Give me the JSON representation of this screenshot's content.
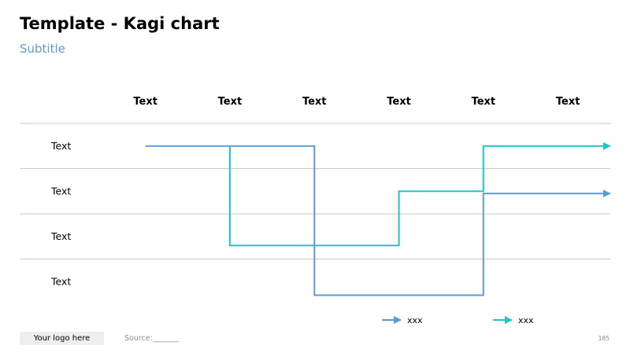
{
  "header": {
    "title": "Template - Kagi chart",
    "subtitle": "Subtitle"
  },
  "chart_data": {
    "type": "line",
    "subtype": "kagi",
    "title": "Template - Kagi chart",
    "subtitle": "Subtitle",
    "columns": [
      "Text",
      "Text",
      "Text",
      "Text",
      "Text",
      "Text"
    ],
    "rows": [
      "Text",
      "Text",
      "Text",
      "Text"
    ],
    "grid": true,
    "legend_position": "bottom-right",
    "series": [
      {
        "name": "xxx",
        "color": "#5B9BD5",
        "points": [
          [
            0.5,
            1
          ],
          [
            2.5,
            1
          ],
          [
            2.5,
            4.3
          ],
          [
            4.5,
            4.3
          ],
          [
            4.5,
            2.05
          ],
          [
            6,
            2.05
          ]
        ]
      },
      {
        "name": "xxx",
        "color": "#1CC7C7",
        "points": [
          [
            1.5,
            1
          ],
          [
            1.5,
            3.2
          ],
          [
            3.5,
            3.2
          ],
          [
            3.5,
            2
          ],
          [
            4.5,
            2
          ],
          [
            4.5,
            1
          ],
          [
            6,
            1
          ]
        ]
      }
    ]
  },
  "footer": {
    "logo": "Your logo here",
    "source": "Source:_______",
    "page": "185"
  }
}
